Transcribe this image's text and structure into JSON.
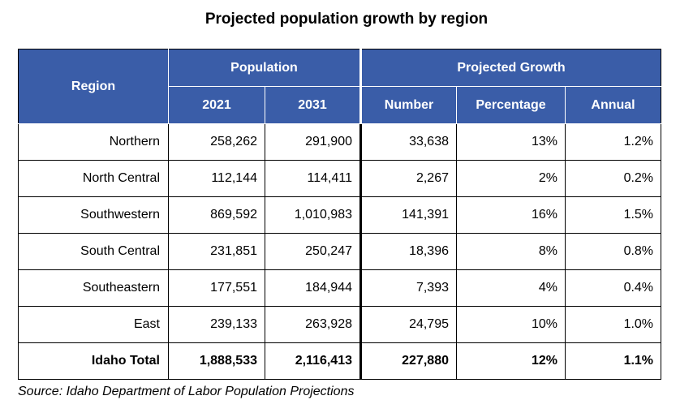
{
  "title": "Projected population growth by region",
  "header": {
    "region": "Region",
    "population": "Population",
    "projected_growth": "Projected Growth",
    "col_2021": "2021",
    "col_2031": "2031",
    "col_number": "Number",
    "col_percentage": "Percentage",
    "col_annual": "Annual"
  },
  "rows": [
    {
      "region": "Northern",
      "p2021": "258,262",
      "p2031": "291,900",
      "number": "33,638",
      "percentage": "13%",
      "annual": "1.2%"
    },
    {
      "region": "North Central",
      "p2021": "112,144",
      "p2031": "114,411",
      "number": "2,267",
      "percentage": "2%",
      "annual": "0.2%"
    },
    {
      "region": "Southwestern",
      "p2021": "869,592",
      "p2031": "1,010,983",
      "number": "141,391",
      "percentage": "16%",
      "annual": "1.5%"
    },
    {
      "region": "South Central",
      "p2021": "231,851",
      "p2031": "250,247",
      "number": "18,396",
      "percentage": "8%",
      "annual": "0.8%"
    },
    {
      "region": "Southeastern",
      "p2021": "177,551",
      "p2031": "184,944",
      "number": "7,393",
      "percentage": "4%",
      "annual": "0.4%"
    },
    {
      "region": "East",
      "p2021": "239,133",
      "p2031": "263,928",
      "number": "24,795",
      "percentage": "10%",
      "annual": "1.0%"
    }
  ],
  "total": {
    "region": "Idaho Total",
    "p2021": "1,888,533",
    "p2031": "2,116,413",
    "number": "227,880",
    "percentage": "12%",
    "annual": "1.1%"
  },
  "source": "Source: Idaho Department of Labor Population Projections",
  "colors": {
    "header_bg": "#3a5da8",
    "header_text": "#ffffff"
  }
}
